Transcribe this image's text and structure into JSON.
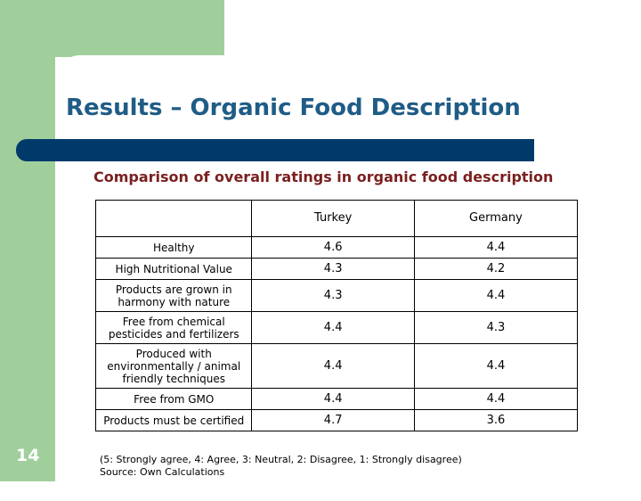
{
  "slide": {
    "title": "Results – Organic Food Description",
    "subtitle": "Comparison of overall ratings in organic food description",
    "page_number": "14",
    "footnote": {
      "line1": "(5: Strongly agree, 4: Agree, 3: Neutral, 2: Disagree, 1: Strongly disagree)",
      "line2": "Source: Own Calculations"
    }
  },
  "table": {
    "headers": [
      "",
      "Turkey",
      "Germany"
    ],
    "rows": [
      {
        "label": "Healthy",
        "turkey": "4.6",
        "germany": "4.4"
      },
      {
        "label": "High Nutritional Value",
        "turkey": "4.3",
        "germany": "4.2"
      },
      {
        "label": "Products are grown in harmony with nature",
        "turkey": "4.3",
        "germany": "4.4"
      },
      {
        "label": "Free from chemical pesticides and fertilizers",
        "turkey": "4.4",
        "germany": "4.3"
      },
      {
        "label": "Produced with environmentally / animal friendly techniques",
        "turkey": "4.4",
        "germany": "4.4"
      },
      {
        "label": "Free from GMO",
        "turkey": "4.4",
        "germany": "4.4"
      },
      {
        "label": "Products must be certified",
        "turkey": "4.7",
        "germany": "3.6"
      }
    ]
  },
  "colors": {
    "background_green": "#a0cf9c",
    "title_blue": "#1f5c86",
    "bar_navy": "#003a6b",
    "subtitle_red": "#7b1f1f"
  }
}
